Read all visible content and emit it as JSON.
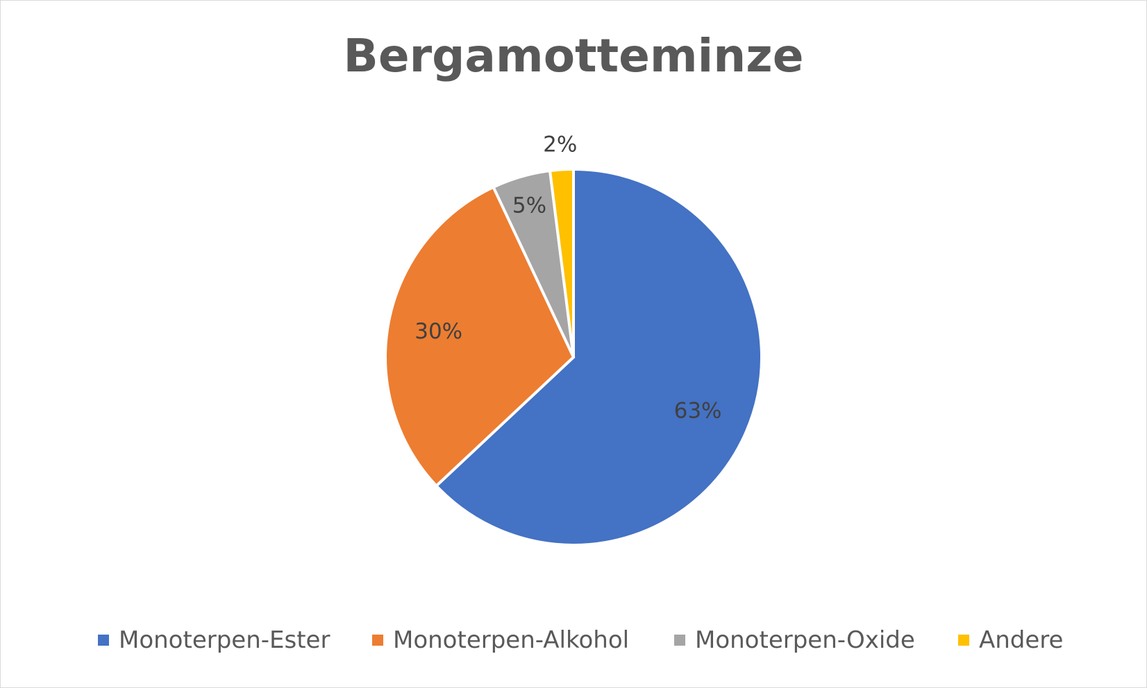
{
  "chart_data": {
    "type": "pie",
    "title": "Bergamotteminze",
    "categories": [
      "Monoterpen-Ester",
      "Monoterpen-Alkohol",
      "Monoterpen-Oxide",
      "Andere"
    ],
    "values": [
      63,
      30,
      5,
      2
    ],
    "data_labels": [
      "63%",
      "30%",
      "5%",
      "2%"
    ],
    "colors": [
      "#4472C4",
      "#ED7D31",
      "#A5A5A5",
      "#FFC000"
    ],
    "start_angle_deg": 0,
    "direction": "clockwise",
    "legend": {
      "position": "bottom",
      "entries": [
        "Monoterpen-Ester",
        "Monoterpen-Alkohol",
        "Monoterpen-Oxide",
        "Andere"
      ]
    }
  }
}
